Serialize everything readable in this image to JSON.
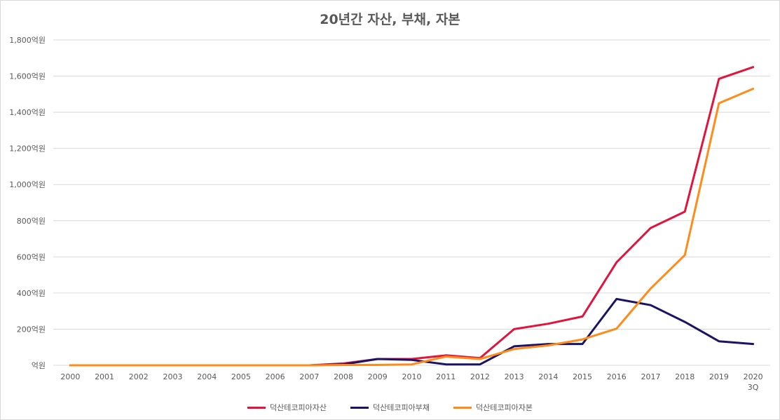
{
  "chart_data": {
    "type": "line",
    "title": "20년간 자산, 부채, 자본",
    "categories": [
      "2000",
      "2001",
      "2002",
      "2003",
      "2004",
      "2005",
      "2006",
      "2007",
      "2008",
      "2009",
      "2010",
      "2011",
      "2012",
      "2013",
      "2014",
      "2015",
      "2016",
      "2017",
      "2018",
      "2019",
      "2020 3Q"
    ],
    "x_tick_lines": [
      [
        "2000"
      ],
      [
        "2001"
      ],
      [
        "2002"
      ],
      [
        "2003"
      ],
      [
        "2004"
      ],
      [
        "2005"
      ],
      [
        "2006"
      ],
      [
        "2007"
      ],
      [
        "2008"
      ],
      [
        "2009"
      ],
      [
        "2010"
      ],
      [
        "2011"
      ],
      [
        "2012"
      ],
      [
        "2013"
      ],
      [
        "2014"
      ],
      [
        "2015"
      ],
      [
        "2016"
      ],
      [
        "2017"
      ],
      [
        "2018"
      ],
      [
        "2019"
      ],
      [
        "2020",
        "3Q"
      ]
    ],
    "y_ticks": [
      "억원",
      "200억원",
      "400억원",
      "600억원",
      "800억원",
      "1,000억원",
      "1,200억원",
      "1,400억원",
      "1,600억원",
      "1,800억원"
    ],
    "ylim": [
      0,
      1800
    ],
    "grid": true,
    "legend_position": "bottom",
    "series": [
      {
        "name": "덕산테코피아자산",
        "color": "#e0143c",
        "values": [
          0,
          0,
          0,
          0,
          0,
          0,
          0,
          0,
          10,
          35,
          35,
          55,
          40,
          200,
          230,
          270,
          570,
          760,
          850,
          1585,
          1650
        ]
      },
      {
        "name": "덕산테코피아부채",
        "color": "#1b1464",
        "values": [
          0,
          0,
          0,
          0,
          0,
          0,
          0,
          0,
          5,
          35,
          30,
          5,
          5,
          105,
          118,
          118,
          367,
          333,
          240,
          133,
          118
        ]
      },
      {
        "name": "덕산테코피아자본",
        "color": "#ff8c1a",
        "values": [
          0,
          0,
          0,
          0,
          0,
          0,
          0,
          0,
          2,
          2,
          5,
          48,
          35,
          90,
          110,
          143,
          203,
          425,
          610,
          1450,
          1530
        ]
      }
    ]
  }
}
